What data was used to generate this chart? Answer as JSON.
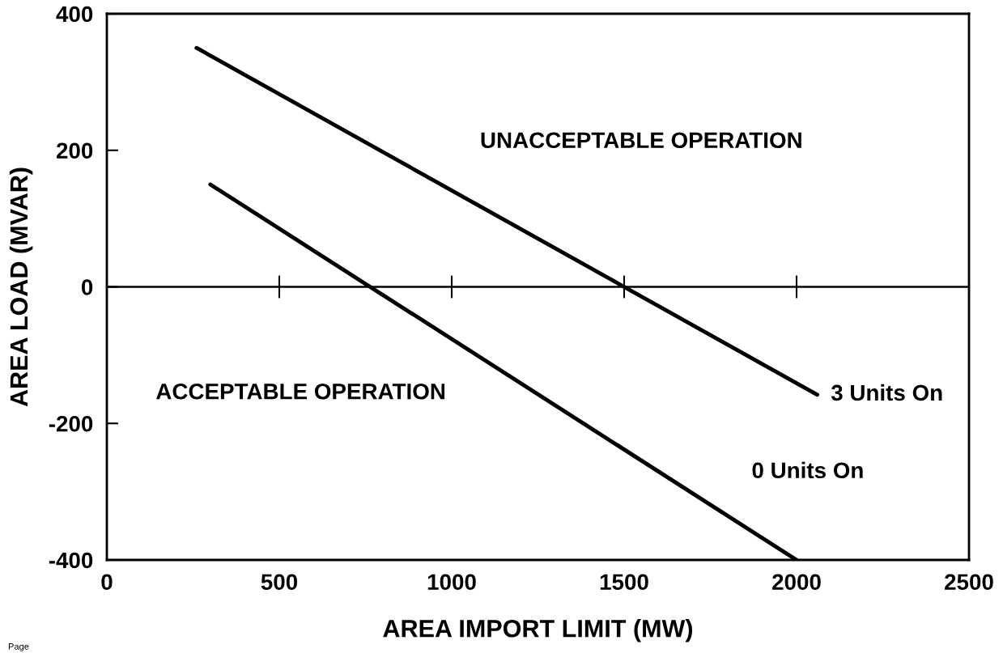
{
  "chart_data": {
    "type": "line",
    "xlabel": "AREA IMPORT LIMIT (MW)",
    "ylabel": "AREA LOAD (MVAR)",
    "series": [
      {
        "name": "3 Units On",
        "color": "#000000",
        "x": [
          260,
          2060
        ],
        "values": [
          350,
          -158
        ]
      },
      {
        "name": "0 Units On",
        "color": "#000000",
        "x": [
          300,
          2000
        ],
        "values": [
          150,
          -400
        ]
      }
    ],
    "xlim": [
      0,
      2500
    ],
    "xticks": [
      0,
      500,
      1000,
      1500,
      2000,
      2500
    ],
    "ylim": [
      -400,
      400
    ],
    "yticks": [
      -400,
      -200,
      0,
      200,
      400
    ],
    "ref_lines": [
      {
        "axis": "y",
        "value": 0,
        "color": "#000000"
      }
    ],
    "annotations": [
      "UNACCEPTABLE OPERATION",
      "ACCEPTABLE OPERATION",
      "Page"
    ],
    "grid": false,
    "legend": false,
    "marker": "none",
    "line_style": "solid"
  }
}
